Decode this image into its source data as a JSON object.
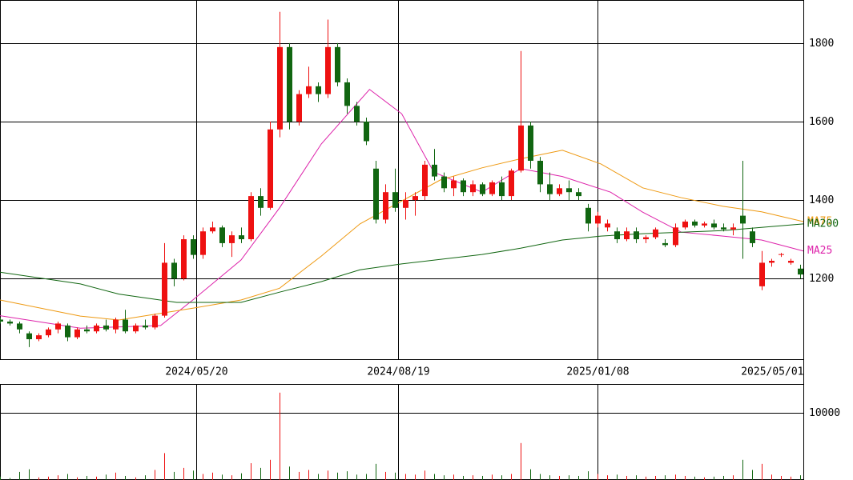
{
  "chart_data": [
    {
      "type": "candlestick",
      "xlim": [
        0,
        250
      ],
      "xticks": [
        {
          "value": 61,
          "label": "2024/05/20"
        },
        {
          "value": 124,
          "label": "2024/08/19"
        },
        {
          "value": 186,
          "label": "2025/01/08"
        },
        {
          "value": 250,
          "label": "2025/05/01"
        }
      ],
      "ylim": [
        992,
        1910
      ],
      "yticks": [
        1200,
        1400,
        1600,
        1800
      ],
      "grid": true,
      "up_color": "#ee1111",
      "down_color": "#116611",
      "x": [
        0,
        3,
        6,
        9,
        12,
        15,
        18,
        21,
        24,
        27,
        30,
        33,
        36,
        39,
        42,
        45,
        48,
        51,
        54,
        57,
        60,
        63,
        66,
        69,
        72,
        75,
        78,
        81,
        84,
        87,
        90,
        93,
        96,
        99,
        102,
        105,
        108,
        111,
        114,
        117,
        120,
        123,
        126,
        129,
        132,
        135,
        138,
        141,
        144,
        147,
        150,
        153,
        156,
        159,
        162,
        165,
        168,
        171,
        174,
        177,
        180,
        183,
        186,
        189,
        192,
        195,
        198,
        201,
        204,
        207,
        210,
        213,
        216,
        219,
        222,
        225,
        228,
        231,
        234,
        237,
        240,
        243,
        246,
        249
      ],
      "open": [
        1095,
        1090,
        1085,
        1060,
        1045,
        1055,
        1070,
        1080,
        1050,
        1070,
        1065,
        1080,
        1070,
        1095,
        1065,
        1080,
        1075,
        1105,
        1240,
        1200,
        1300,
        1260,
        1320,
        1330,
        1290,
        1310,
        1300,
        1410,
        1380,
        1580,
        1790,
        1600,
        1670,
        1690,
        1670,
        1790,
        1700,
        1640,
        1600,
        1480,
        1350,
        1420,
        1380,
        1400,
        1410,
        1490,
        1460,
        1430,
        1450,
        1420,
        1440,
        1415,
        1445,
        1410,
        1475,
        1590,
        1500,
        1440,
        1415,
        1430,
        1420,
        1380,
        1340,
        1330,
        1320,
        1300,
        1320,
        1300,
        1305,
        1290,
        1285,
        1330,
        1345,
        1335,
        1340,
        1330,
        1325,
        1360,
        1320,
        1180,
        1240,
        1260,
        1240,
        1225
      ],
      "high": [
        1100,
        1095,
        1090,
        1065,
        1060,
        1075,
        1090,
        1085,
        1075,
        1080,
        1085,
        1095,
        1100,
        1120,
        1085,
        1095,
        1110,
        1290,
        1250,
        1310,
        1310,
        1330,
        1345,
        1335,
        1320,
        1330,
        1420,
        1430,
        1600,
        1880,
        1800,
        1680,
        1740,
        1700,
        1860,
        1800,
        1710,
        1650,
        1610,
        1500,
        1440,
        1480,
        1420,
        1420,
        1500,
        1530,
        1470,
        1460,
        1455,
        1450,
        1445,
        1450,
        1460,
        1480,
        1780,
        1600,
        1510,
        1470,
        1440,
        1450,
        1430,
        1390,
        1370,
        1350,
        1330,
        1330,
        1330,
        1310,
        1330,
        1300,
        1340,
        1350,
        1350,
        1345,
        1350,
        1340,
        1340,
        1500,
        1330,
        1270,
        1250,
        1265,
        1250,
        1235
      ],
      "low": [
        1085,
        1080,
        1060,
        1025,
        1040,
        1050,
        1060,
        1040,
        1045,
        1060,
        1060,
        1065,
        1060,
        1060,
        1060,
        1070,
        1070,
        1100,
        1180,
        1195,
        1250,
        1250,
        1315,
        1280,
        1255,
        1290,
        1295,
        1360,
        1375,
        1560,
        1580,
        1590,
        1660,
        1650,
        1660,
        1690,
        1620,
        1590,
        1540,
        1340,
        1340,
        1370,
        1350,
        1360,
        1400,
        1450,
        1420,
        1410,
        1410,
        1410,
        1410,
        1410,
        1400,
        1400,
        1470,
        1480,
        1420,
        1400,
        1410,
        1400,
        1400,
        1320,
        1330,
        1320,
        1290,
        1295,
        1290,
        1290,
        1300,
        1280,
        1280,
        1325,
        1330,
        1330,
        1325,
        1320,
        1310,
        1250,
        1280,
        1170,
        1230,
        1255,
        1235,
        1200
      ],
      "close": [
        1090,
        1085,
        1070,
        1045,
        1055,
        1070,
        1085,
        1050,
        1070,
        1065,
        1080,
        1070,
        1095,
        1065,
        1080,
        1075,
        1105,
        1240,
        1200,
        1300,
        1260,
        1320,
        1330,
        1290,
        1310,
        1300,
        1410,
        1380,
        1580,
        1790,
        1600,
        1670,
        1690,
        1670,
        1790,
        1700,
        1640,
        1600,
        1550,
        1350,
        1420,
        1380,
        1400,
        1410,
        1490,
        1460,
        1430,
        1450,
        1420,
        1440,
        1415,
        1445,
        1410,
        1475,
        1590,
        1500,
        1440,
        1415,
        1430,
        1420,
        1410,
        1340,
        1360,
        1340,
        1300,
        1320,
        1300,
        1305,
        1325,
        1285,
        1330,
        1345,
        1335,
        1340,
        1330,
        1325,
        1330,
        1340,
        1290,
        1240,
        1245,
        1262,
        1245,
        1210
      ],
      "lines": [
        {
          "name": "MA25",
          "color": "#dd22aa",
          "x": [
            0,
            25,
            50,
            60,
            75,
            87,
            100,
            115,
            125,
            135,
            150,
            162,
            175,
            190,
            200,
            212,
            225,
            237,
            250
          ],
          "values": [
            1105,
            1073,
            1080,
            1145,
            1247,
            1380,
            1543,
            1682,
            1620,
            1471,
            1420,
            1480,
            1460,
            1420,
            1369,
            1318,
            1308,
            1298,
            1270
          ]
        },
        {
          "name": "MA75",
          "color": "#ee9911",
          "x": [
            0,
            25,
            37,
            60,
            75,
            87,
            100,
            112,
            120,
            137,
            150,
            162,
            175,
            187,
            200,
            212,
            225,
            237,
            250
          ],
          "values": [
            1145,
            1104,
            1094,
            1124,
            1145,
            1175,
            1257,
            1339,
            1375,
            1451,
            1482,
            1505,
            1527,
            1492,
            1431,
            1406,
            1384,
            1370,
            1345
          ]
        },
        {
          "name": "MA200",
          "color": "#116611",
          "x": [
            0,
            25,
            37,
            55,
            75,
            87,
            100,
            112,
            125,
            150,
            162,
            175,
            187,
            200,
            225,
            250
          ],
          "values": [
            1216,
            1186,
            1160,
            1139,
            1139,
            1165,
            1192,
            1222,
            1237,
            1261,
            1277,
            1298,
            1308,
            1314,
            1322,
            1339
          ]
        }
      ]
    },
    {
      "type": "bar",
      "xlim": [
        0,
        250
      ],
      "ylim": [
        0,
        14286
      ],
      "yticks": [
        10000
      ],
      "grid": true,
      "x": [
        0,
        3,
        6,
        9,
        12,
        15,
        18,
        21,
        24,
        27,
        30,
        33,
        36,
        39,
        42,
        45,
        48,
        51,
        54,
        57,
        60,
        63,
        66,
        69,
        72,
        75,
        78,
        81,
        84,
        87,
        90,
        93,
        96,
        99,
        102,
        105,
        108,
        111,
        114,
        117,
        120,
        123,
        126,
        129,
        132,
        135,
        138,
        141,
        144,
        147,
        150,
        153,
        156,
        159,
        162,
        165,
        168,
        171,
        174,
        177,
        180,
        183,
        186,
        189,
        192,
        195,
        198,
        201,
        204,
        207,
        210,
        213,
        216,
        219,
        222,
        225,
        228,
        231,
        234,
        237,
        240,
        243,
        246,
        249
      ],
      "values": [
        500,
        300,
        1200,
        1600,
        400,
        500,
        700,
        900,
        400,
        600,
        500,
        800,
        1100,
        600,
        400,
        700,
        1500,
        4000,
        1200,
        1800,
        1400,
        900,
        1100,
        800,
        700,
        1000,
        2500,
        1800,
        3000,
        13000,
        2000,
        1200,
        1500,
        900,
        1400,
        1100,
        1300,
        800,
        900,
        2400,
        1200,
        1100,
        900,
        800,
        1400,
        900,
        700,
        800,
        600,
        700,
        600,
        800,
        700,
        900,
        5500,
        1600,
        900,
        700,
        600,
        700,
        600,
        1300,
        900,
        700,
        800,
        600,
        700,
        500,
        600,
        700,
        800,
        600,
        500,
        400,
        500,
        600,
        700,
        3000,
        1500,
        2400,
        800,
        600,
        500,
        700
      ]
    }
  ]
}
